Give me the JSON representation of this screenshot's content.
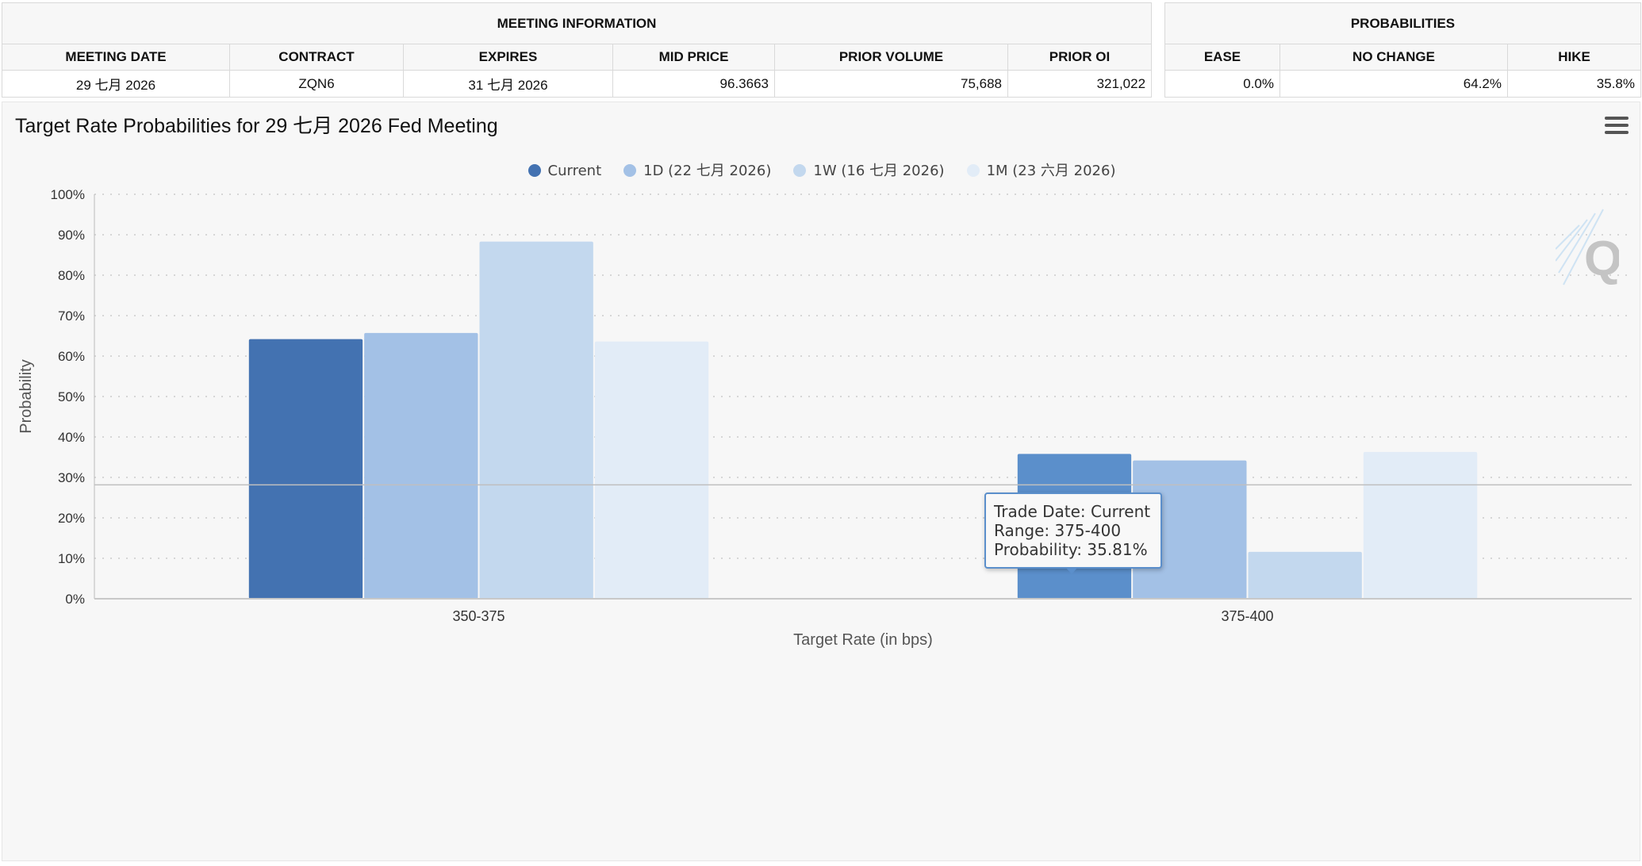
{
  "meeting_info": {
    "title": "MEETING INFORMATION",
    "columns": [
      "MEETING DATE",
      "CONTRACT",
      "EXPIRES",
      "MID PRICE",
      "PRIOR VOLUME",
      "PRIOR OI"
    ],
    "row": [
      "29 七月 2026",
      "ZQN6",
      "31 七月 2026",
      "96.3663",
      "75,688",
      "321,022"
    ]
  },
  "probabilities": {
    "title": "PROBABILITIES",
    "columns": [
      "EASE",
      "NO CHANGE",
      "HIKE"
    ],
    "row": [
      "0.0%",
      "64.2%",
      "35.8%"
    ]
  },
  "chart_menu": {
    "icon": "hamburger-menu-icon"
  },
  "watermark": {
    "icon": "cme-q-logo-icon"
  },
  "tooltip": {
    "line1": "Trade Date: Current",
    "line2": "Range: 375-400",
    "line3": "Probability: 35.81%"
  },
  "chart_data": {
    "type": "bar",
    "title": "Target Rate Probabilities for 29 七月 2026 Fed Meeting",
    "xlabel": "Target Rate (in bps)",
    "ylabel": "Probability",
    "categories": [
      "350-375",
      "375-400"
    ],
    "ylim": [
      0,
      100
    ],
    "yticks": [
      "0%",
      "10%",
      "20%",
      "30%",
      "40%",
      "50%",
      "60%",
      "70%",
      "80%",
      "90%",
      "100%"
    ],
    "grid": true,
    "legend_position": "top-center",
    "series": [
      {
        "name": "Current",
        "values": [
          64.19,
          35.81
        ],
        "color": "#4372b1"
      },
      {
        "name": "1D (22 七月 2026)",
        "values": [
          65.7,
          34.2
        ],
        "color": "#a3c1e6"
      },
      {
        "name": "1W (16 七月 2026)",
        "values": [
          88.3,
          11.6
        ],
        "color": "#c3d8ee"
      },
      {
        "name": "1M (23 六月 2026)",
        "values": [
          63.6,
          36.3
        ],
        "color": "#e2ecf7"
      }
    ],
    "highlight": {
      "series": 0,
      "category": 1,
      "color": "#5b8fcb"
    }
  }
}
